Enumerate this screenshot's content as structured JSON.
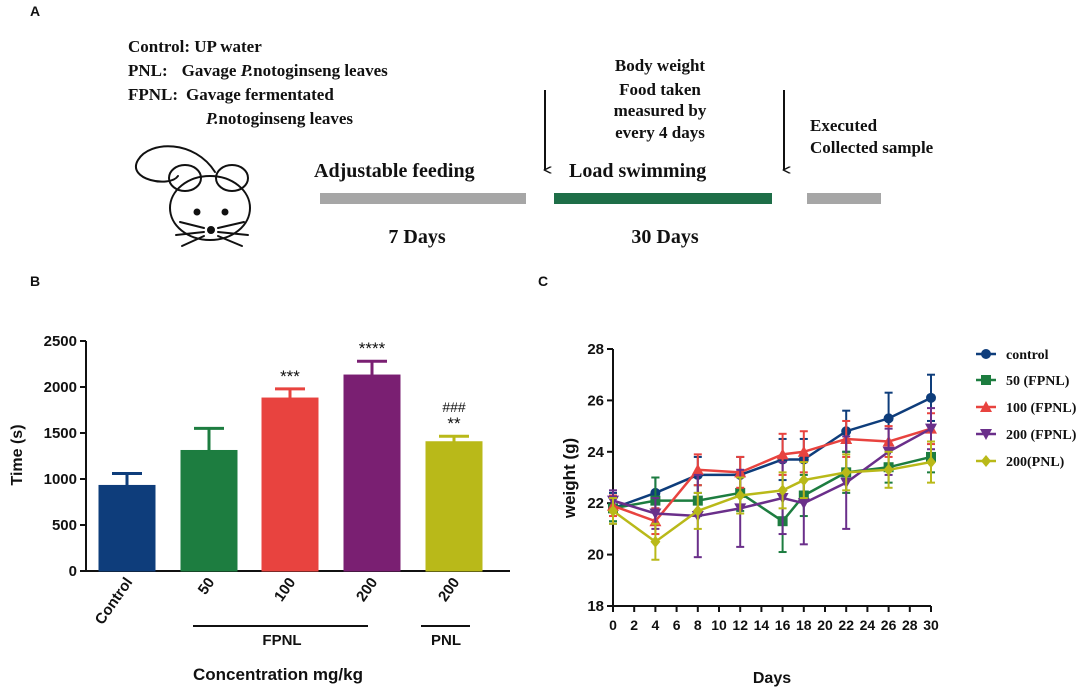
{
  "panel_a": {
    "label": "A",
    "groups": [
      {
        "name": "Control:",
        "desc": "UP water"
      },
      {
        "name": "PNL:",
        "desc_pre": "Gavage ",
        "desc_italic": "P.",
        "desc_post": "notoginseng leaves"
      },
      {
        "name": "FPNL:",
        "desc": "Gavage fermentated",
        "desc2_italic": "P.",
        "desc2_post": "notoginseng leaves"
      }
    ],
    "measure_lines": [
      "Body weight",
      "Food taken",
      "measured by",
      "every 4 days"
    ],
    "stage1_label": "Adjustable feeding",
    "stage1_duration": "7 Days",
    "stage2_label": "Load swimming",
    "stage2_duration": "30 Days",
    "end_lines": [
      "Executed",
      "Collected sample"
    ],
    "colors": {
      "stage_gray": "#a6a6a6",
      "stage_green": "#1e6e48"
    }
  },
  "panel_b_label": "B",
  "panel_c_label": "C",
  "chart_data": [
    {
      "type": "bar",
      "panel": "B",
      "ylabel": "Time (s)",
      "xlabel": "Concentration mg/kg",
      "ylim": [
        0,
        2500
      ],
      "yticks": [
        "0",
        "500",
        "1000",
        "1500",
        "2000",
        "2500"
      ],
      "categories": [
        "Control",
        "50",
        "100",
        "200",
        "200"
      ],
      "values": [
        930,
        1310,
        1880,
        2130,
        1405
      ],
      "errors": [
        130,
        240,
        100,
        150,
        60
      ],
      "colors": [
        "#0e3d7b",
        "#1d7d40",
        "#e8433f",
        "#7a1f72",
        "#b9b919"
      ],
      "significance": [
        "",
        "",
        "***",
        "****",
        "**"
      ],
      "significance_hash": [
        "",
        "",
        "",
        "",
        "###"
      ],
      "group_labels": [
        {
          "label": "FPNL",
          "from": 1,
          "to": 3
        },
        {
          "label": "PNL",
          "from": 4,
          "to": 4
        }
      ]
    },
    {
      "type": "line",
      "panel": "C",
      "ylabel": "weight  (g)",
      "xlabel": "Days",
      "ylim": [
        18,
        28
      ],
      "xlim": [
        0,
        30
      ],
      "xticks": [
        "0",
        "2",
        "4",
        "6",
        "8",
        "10",
        "12",
        "14",
        "16",
        "18",
        "20",
        "22",
        "24",
        "26",
        "28",
        "30"
      ],
      "yticks": [
        "18",
        "20",
        "22",
        "24",
        "26",
        "28"
      ],
      "x": [
        0,
        4,
        8,
        12,
        16,
        18,
        22,
        26,
        30
      ],
      "series": [
        {
          "name": "control",
          "color": "#0e3d7b",
          "marker": "circle",
          "values": [
            21.8,
            22.4,
            23.1,
            23.1,
            23.7,
            23.7,
            24.8,
            25.3,
            26.1
          ],
          "errors": [
            0.6,
            0.6,
            0.7,
            0.7,
            0.8,
            0.8,
            0.8,
            1.0,
            0.9
          ]
        },
        {
          "name": "50  (FPNL)",
          "color": "#1d7d40",
          "marker": "square",
          "values": [
            21.8,
            22.1,
            22.1,
            22.4,
            21.3,
            22.3,
            23.2,
            23.4,
            23.8
          ],
          "errors": [
            0.5,
            0.9,
            0.6,
            0.7,
            1.2,
            0.8,
            0.8,
            0.6,
            0.6
          ]
        },
        {
          "name": "100 (FPNL)",
          "color": "#e8433f",
          "marker": "triangle-up",
          "values": [
            21.9,
            21.3,
            23.3,
            23.2,
            23.9,
            24.0,
            24.5,
            24.4,
            24.9
          ],
          "errors": [
            0.4,
            0.5,
            0.6,
            0.6,
            0.8,
            0.8,
            0.7,
            0.6,
            0.6
          ]
        },
        {
          "name": "200 (FPNL)",
          "color": "#6a2f8a",
          "marker": "triangle-down",
          "values": [
            22.1,
            21.6,
            21.5,
            21.8,
            22.2,
            22.0,
            22.8,
            24.0,
            24.9
          ],
          "errors": [
            0.4,
            0.6,
            1.6,
            1.5,
            1.4,
            1.6,
            1.8,
            0.9,
            0.8
          ]
        },
        {
          "name": "200(PNL)",
          "color": "#b9b919",
          "marker": "diamond",
          "values": [
            21.7,
            20.5,
            21.7,
            22.3,
            22.5,
            22.9,
            23.2,
            23.3,
            23.6
          ],
          "errors": [
            0.5,
            0.7,
            0.7,
            0.7,
            0.7,
            0.7,
            0.7,
            0.7,
            0.8
          ]
        }
      ]
    }
  ]
}
